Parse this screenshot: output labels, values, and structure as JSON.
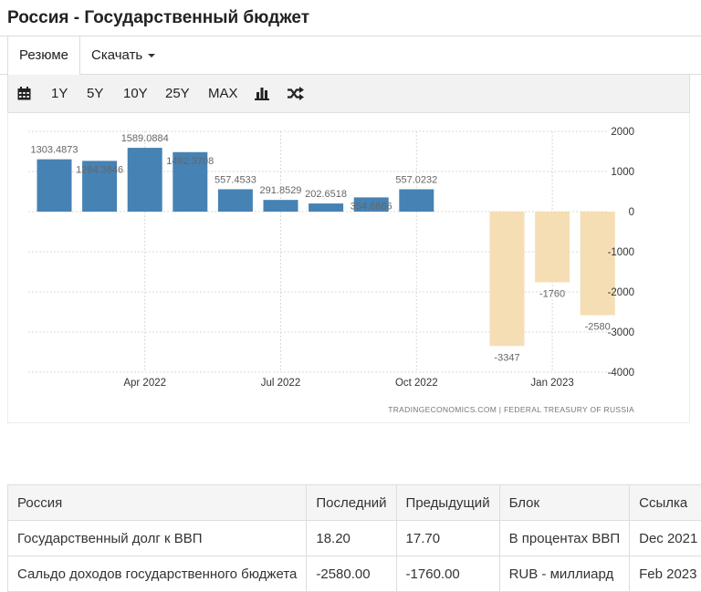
{
  "page": {
    "title": "Россия - Государственный бюджет"
  },
  "tabs": [
    {
      "label": "Резюме"
    },
    {
      "label": "Скачать"
    }
  ],
  "toolbar": {
    "ranges": [
      "1Y",
      "5Y",
      "10Y",
      "25Y",
      "MAX"
    ]
  },
  "chart_data": {
    "type": "bar",
    "source": "TRADINGECONOMICS.COM  |  FEDERAL TREASURY OF RUSSIA",
    "x": [
      "2022-02",
      "2022-03",
      "2022-04",
      "2022-05",
      "2022-06",
      "2022-07",
      "2022-08",
      "2022-09",
      "2022-10",
      "2022-11",
      "2022-12",
      "2023-01",
      "2023-02"
    ],
    "values": [
      1303.4873,
      1264.3646,
      1589.0884,
      1482.3708,
      557.4533,
      291.8529,
      202.6518,
      354.6866,
      557.0232,
      null,
      -3347,
      -1760,
      -2580
    ],
    "data_labels": [
      "1303.4873",
      "1264.3646",
      "1589.0884",
      "1482.3708",
      "557.4533",
      "291.8529",
      "202.6518",
      "354.6866",
      "557.0232",
      "",
      "-3347",
      "-1760",
      "-2580"
    ],
    "x_ticks": [
      {
        "at": "2022-04",
        "label": "Apr 2022"
      },
      {
        "at": "2022-07",
        "label": "Jul 2022"
      },
      {
        "at": "2022-10",
        "label": "Oct 2022"
      },
      {
        "at": "2023-01",
        "label": "Jan 2023"
      }
    ],
    "y_ticks": [
      2000,
      1000,
      0,
      -1000,
      -2000,
      -3000,
      -4000
    ],
    "ylim": [
      -4000,
      2000
    ],
    "y_axis_position": "right",
    "grid": true,
    "colors": {
      "positive": "#4682b4",
      "negative": "#f5deb3"
    }
  },
  "table": {
    "headers": [
      "Россия",
      "Последний",
      "Предыдущий",
      "Блок",
      "Ссылка"
    ],
    "rows": [
      [
        "Государственный долг к ВВП",
        "18.20",
        "17.70",
        "В процентах ВВП",
        "Dec 2021"
      ],
      [
        "Сальдо доходов государственного бюджета",
        "-2580.00",
        "-1760.00",
        "RUB - миллиард",
        "Feb 2023"
      ]
    ]
  }
}
